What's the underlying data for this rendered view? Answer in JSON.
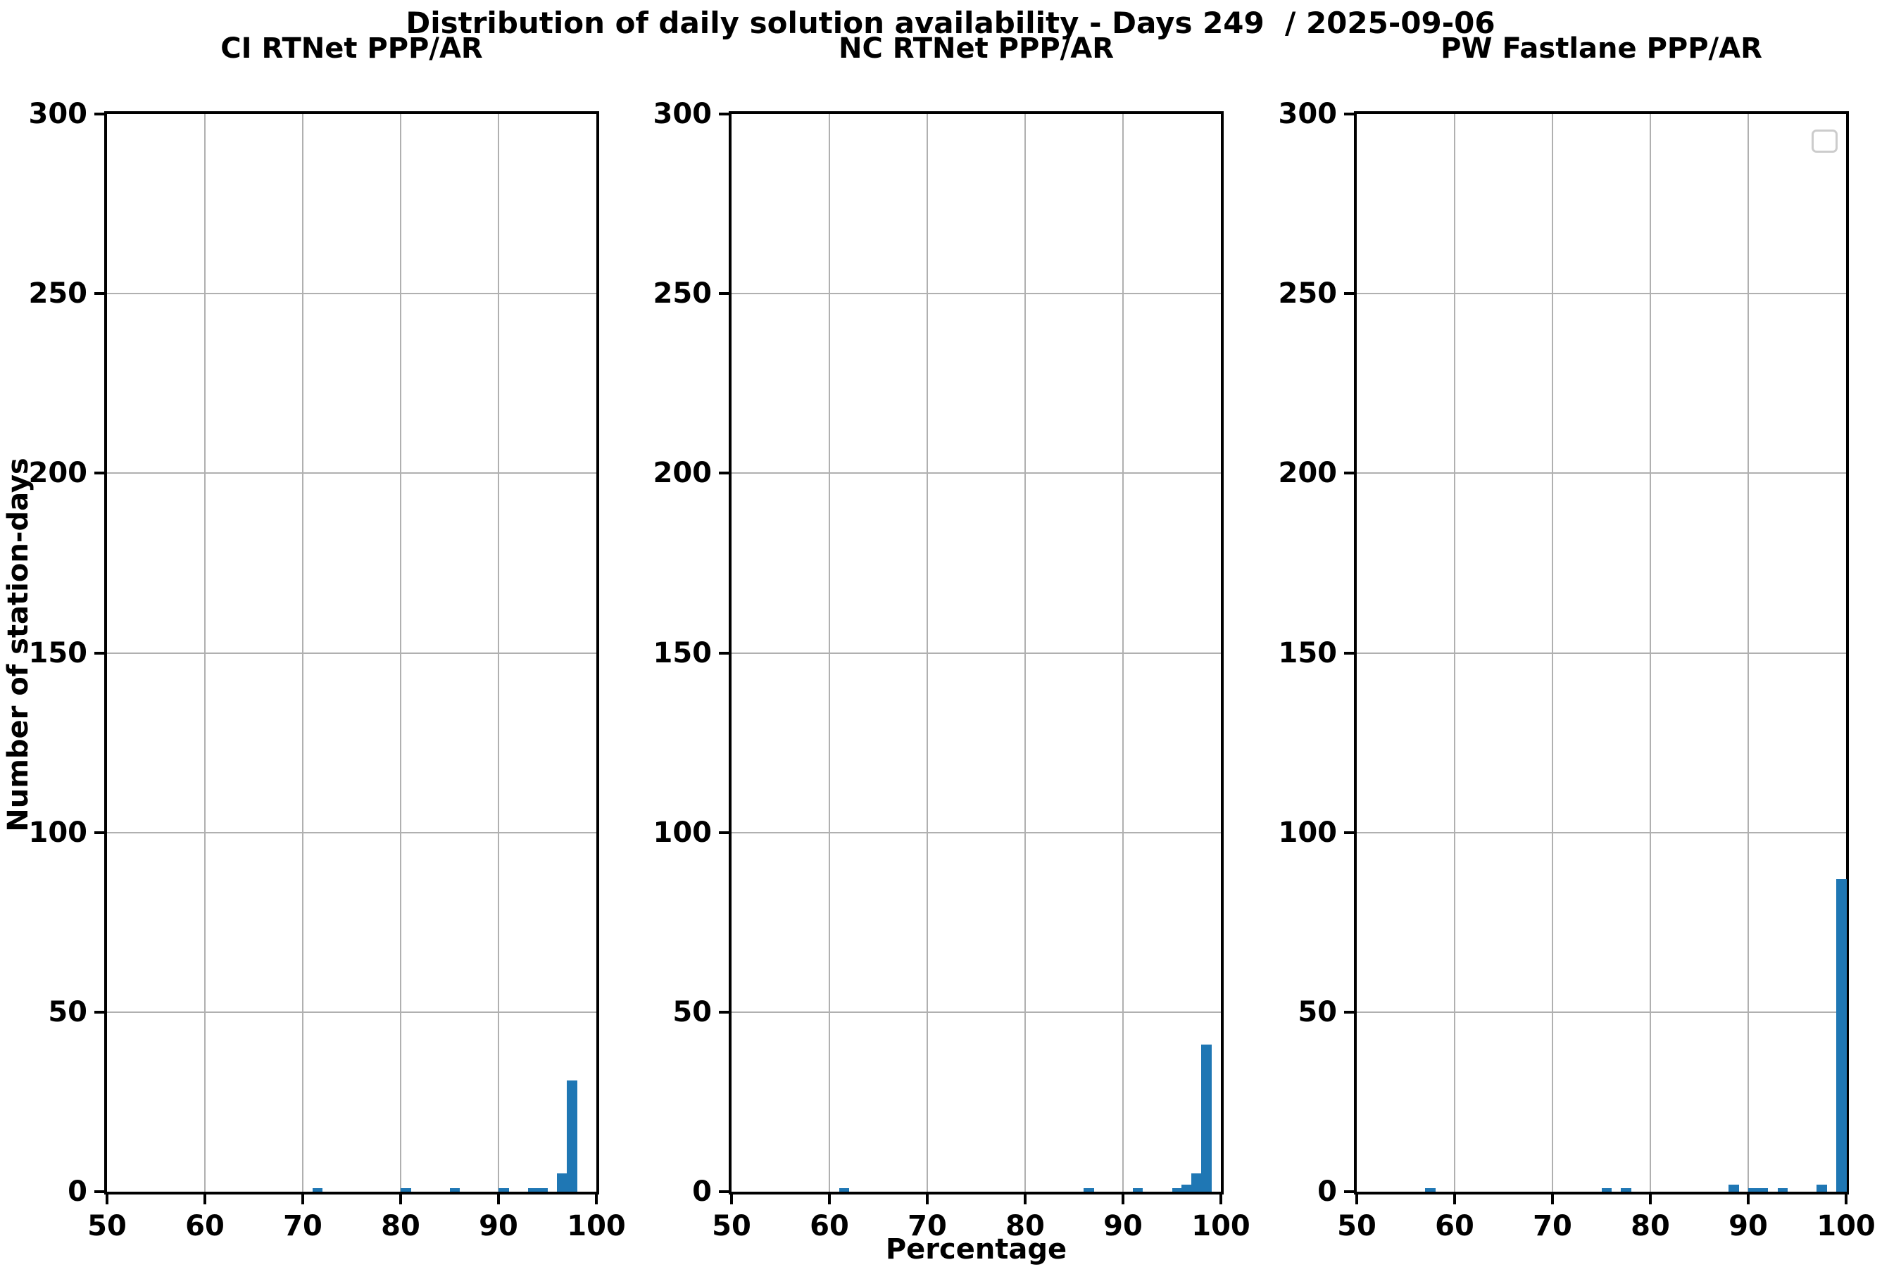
{
  "title": "Distribution of daily solution availability - Days 249  / 2025-09-06",
  "ylabel": "Number of station-days",
  "xlabel": "Percentage",
  "colors": {
    "bar": "#1f77b4",
    "grid": "#b0b0b0",
    "spine": "#000000",
    "text": "#000000",
    "legend_border": "#cccccc",
    "background": "#ffffff"
  },
  "axes": {
    "x_min": 50,
    "x_max": 100,
    "x_ticks": [
      50,
      60,
      70,
      80,
      90,
      100
    ],
    "y_min": 0,
    "y_max": 300,
    "y_ticks": [
      300,
      250,
      200,
      150,
      100,
      50,
      0
    ],
    "grid": true,
    "bin_width": 1
  },
  "chart_data": [
    {
      "type": "bar",
      "title": "CI RTNet PPP/AR",
      "xlabel": "Percentage",
      "ylabel": "Number of station-days",
      "xlim": [
        50,
        100
      ],
      "ylim": [
        0,
        300
      ],
      "bins": [
        {
          "start": 71,
          "count": 1
        },
        {
          "start": 80,
          "count": 1
        },
        {
          "start": 85,
          "count": 1
        },
        {
          "start": 90,
          "count": 1
        },
        {
          "start": 93,
          "count": 1
        },
        {
          "start": 94,
          "count": 1
        },
        {
          "start": 96,
          "count": 5
        },
        {
          "start": 97,
          "count": 31
        }
      ]
    },
    {
      "type": "bar",
      "title": "NC RTNet PPP/AR",
      "xlabel": "Percentage",
      "ylabel": "Number of station-days",
      "xlim": [
        50,
        100
      ],
      "ylim": [
        0,
        300
      ],
      "bins": [
        {
          "start": 61,
          "count": 1
        },
        {
          "start": 86,
          "count": 1
        },
        {
          "start": 91,
          "count": 1
        },
        {
          "start": 95,
          "count": 1
        },
        {
          "start": 96,
          "count": 2
        },
        {
          "start": 97,
          "count": 5
        },
        {
          "start": 98,
          "count": 41
        }
      ]
    },
    {
      "type": "bar",
      "title": "PW Fastlane PPP/AR",
      "xlabel": "Percentage",
      "ylabel": "Number of station-days",
      "xlim": [
        50,
        100
      ],
      "ylim": [
        0,
        300
      ],
      "has_empty_legend": true,
      "bins": [
        {
          "start": 57,
          "count": 1
        },
        {
          "start": 75,
          "count": 1
        },
        {
          "start": 77,
          "count": 1
        },
        {
          "start": 88,
          "count": 2
        },
        {
          "start": 90,
          "count": 1
        },
        {
          "start": 91,
          "count": 1
        },
        {
          "start": 93,
          "count": 1
        },
        {
          "start": 97,
          "count": 2
        },
        {
          "start": 99,
          "count": 87
        }
      ]
    }
  ]
}
